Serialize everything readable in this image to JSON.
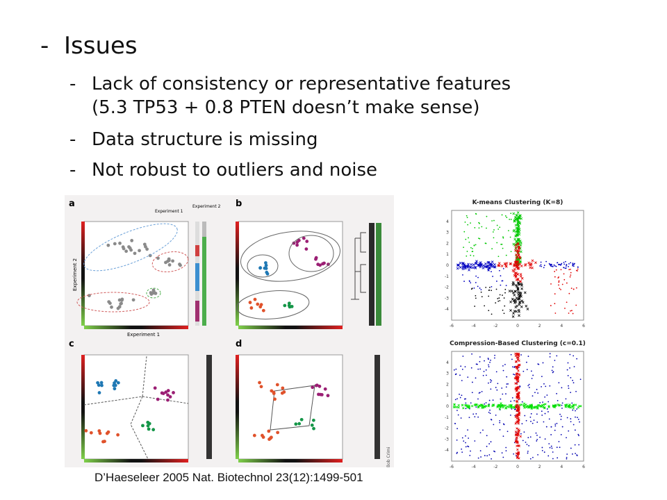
{
  "slide": {
    "heading": {
      "dash": "-",
      "text": "Issues"
    },
    "bullets": [
      {
        "dash": "-",
        "line1": "Lack of consistency or representative features",
        "line2": "(5.3 TP53 + 0.8 PTEN doesn’t make sense)"
      },
      {
        "dash": "-",
        "line1": "Data structure is missing"
      },
      {
        "dash": "-",
        "line1": "Not robust to outliers and noise"
      }
    ],
    "citation": "D’Haeseleer 2005 Nat. Biotechnol 23(12):1499-501"
  },
  "figure": {
    "panel_labels": [
      "a",
      "b",
      "c",
      "d"
    ],
    "xlabel": "Experiment 1",
    "ylabel": "Experiment 2",
    "legend_exp1": "Experiment 1",
    "legend_exp2": "Experiment 2",
    "credit": "Bob Crimi",
    "colors": {
      "gray": "#8a8a8a",
      "blue": "#1f78b4",
      "purple": "#9b1f74",
      "orange": "#e0522b",
      "green": "#159648"
    }
  },
  "chart_data": [
    {
      "type": "scatter",
      "title": "K-means Clustering (K=8)",
      "xlim": [
        -6,
        6
      ],
      "ylim": [
        -5,
        5
      ],
      "xticks": [
        "-6",
        "-4",
        "-2",
        "0",
        "2",
        "4",
        "6"
      ],
      "yticks": [
        "4",
        "3",
        "2",
        "1",
        "0",
        "-1",
        "-2",
        "-3",
        "-4"
      ],
      "series_colors": [
        "#00c800",
        "#e00000",
        "#0000c0",
        "#000000"
      ]
    },
    {
      "type": "scatter",
      "title": "Compression-Based Clustering (c=0.1)",
      "xlim": [
        -6,
        6
      ],
      "ylim": [
        -5,
        5
      ],
      "xticks": [
        "-6",
        "-4",
        "-2",
        "0",
        "2",
        "4",
        "6"
      ],
      "yticks": [
        "4",
        "3",
        "2",
        "1",
        "0",
        "-1",
        "-2",
        "-3",
        "-4"
      ],
      "series_colors": [
        "#00e000",
        "#e00000",
        "#0000b0"
      ]
    }
  ]
}
